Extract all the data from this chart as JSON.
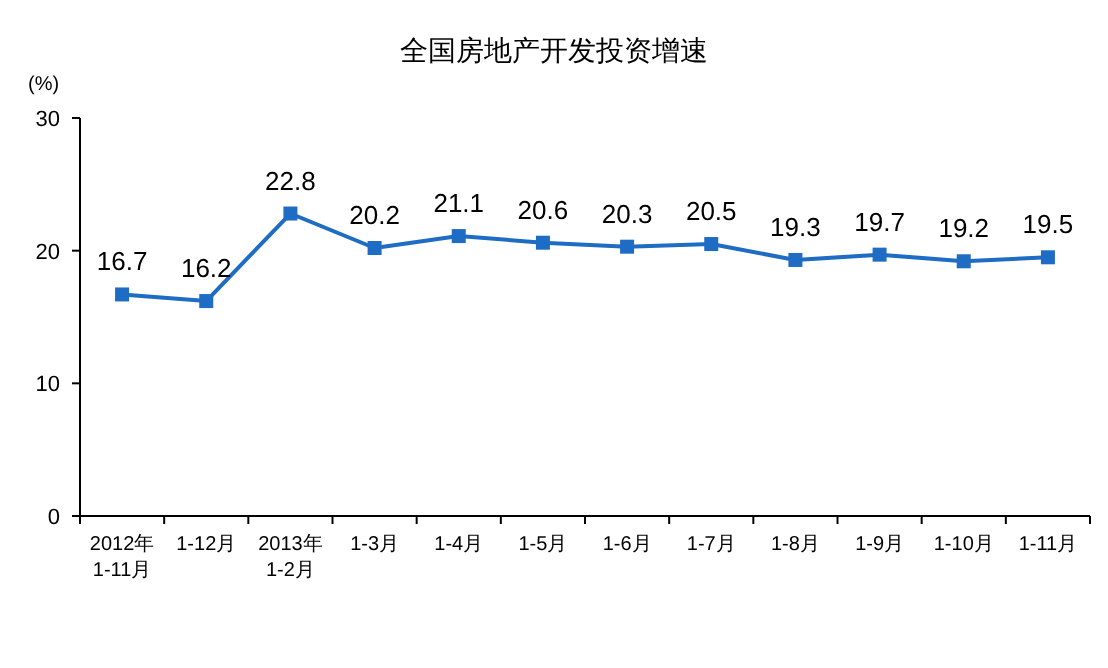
{
  "chart_data": {
    "type": "line",
    "title": "全国房地产开发投资增速",
    "ylabel": "(%)",
    "categories": [
      "2012年\n1-11月",
      "1-12月",
      "2013年\n1-2月",
      "1-3月",
      "1-4月",
      "1-5月",
      "1-6月",
      "1-7月",
      "1-8月",
      "1-9月",
      "1-10月",
      "1-11月"
    ],
    "series": [
      {
        "color": "#1f6cc4",
        "values": [
          16.7,
          16.2,
          22.8,
          20.2,
          21.1,
          20.6,
          20.3,
          20.5,
          19.3,
          19.7,
          19.2,
          19.5
        ]
      }
    ],
    "ylim": [
      0,
      30
    ],
    "yticks": [
      0,
      10,
      20,
      30
    ],
    "grid": false,
    "marker": "square",
    "line_style": "solid",
    "data_labels": true
  }
}
